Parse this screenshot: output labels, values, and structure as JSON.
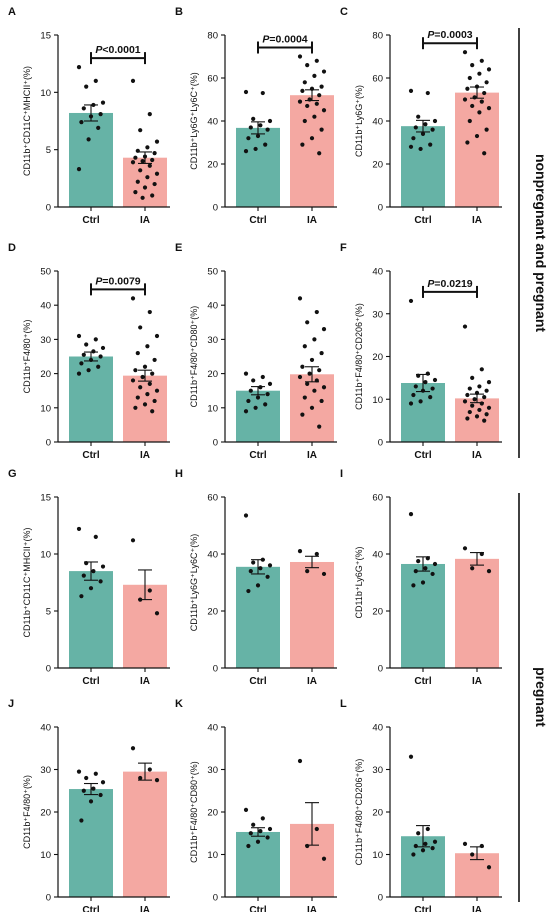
{
  "colors": {
    "ctrl": "#66b3a6",
    "ia": "#f4a8a2",
    "axis": "#111111",
    "dot": "#111111"
  },
  "groups": [
    {
      "label": "nonpregnant and pregnant"
    },
    {
      "label": "pregnant"
    }
  ],
  "chart_data": [
    {
      "panel": "A",
      "type": "bar",
      "ylabel": "CD11b⁺CD11C⁺MHCII⁺(%)",
      "categories": [
        "Ctrl",
        "IA"
      ],
      "ylim": [
        0,
        15
      ],
      "yticks": [
        0,
        5,
        10,
        15
      ],
      "means": [
        8.2,
        4.3
      ],
      "errors": [
        0.7,
        0.5
      ],
      "sig": "P<0.0001",
      "points": [
        [
          12.2,
          11.0,
          10.5,
          9.1,
          8.9,
          8.6,
          8.1,
          7.9,
          7.4,
          6.9,
          5.9,
          3.3
        ],
        [
          11.0,
          8.1,
          6.7,
          5.7,
          5.2,
          4.9,
          4.7,
          4.4,
          4.3,
          4.1,
          4.0,
          3.9,
          3.6,
          3.2,
          2.9,
          2.6,
          2.2,
          2.0,
          1.7,
          1.3,
          1.0,
          0.8
        ]
      ]
    },
    {
      "panel": "B",
      "type": "bar",
      "ylabel": "CD11b⁺Ly6G⁺Ly6C⁺(%)",
      "categories": [
        "Ctrl",
        "IA"
      ],
      "ylim": [
        0,
        80
      ],
      "yticks": [
        0,
        20,
        40,
        60,
        80
      ],
      "means": [
        36.8,
        52.0
      ],
      "errors": [
        2.8,
        2.5
      ],
      "sig": "P=0.0004",
      "points": [
        [
          53.5,
          53.0,
          41.0,
          40.0,
          38.0,
          37.0,
          36.0,
          33.0,
          32.0,
          29.0,
          27.0,
          26.0
        ],
        [
          70.0,
          68.0,
          66.0,
          63.0,
          61.0,
          58.0,
          56.0,
          55.0,
          54.0,
          52.0,
          50.0,
          49.0,
          48.0,
          47.0,
          45.0,
          42.0,
          40.0,
          36.0,
          32.0,
          29.0,
          25.0
        ]
      ]
    },
    {
      "panel": "C",
      "type": "bar",
      "ylabel": "CD11b⁺Ly6G⁺(%)",
      "categories": [
        "Ctrl",
        "IA"
      ],
      "ylim": [
        0,
        80
      ],
      "yticks": [
        0,
        20,
        40,
        60,
        80
      ],
      "means": [
        37.6,
        53.2
      ],
      "errors": [
        2.7,
        2.6
      ],
      "sig": "P=0.0003",
      "points": [
        [
          54.0,
          53.0,
          42.0,
          40.0,
          38.5,
          37.0,
          36.0,
          34.0,
          32.0,
          29.0,
          27.0,
          28.0
        ],
        [
          72.0,
          68.0,
          66.0,
          64.0,
          62.0,
          60.0,
          58.0,
          56.0,
          55.0,
          53.0,
          51.0,
          50.0,
          49.0,
          47.0,
          46.0,
          44.0,
          40.0,
          36.0,
          33.0,
          30.0,
          25.0
        ]
      ]
    },
    {
      "panel": "D",
      "type": "bar",
      "ylabel": "CD11b⁺F4/80⁺(%)",
      "categories": [
        "Ctrl",
        "IA"
      ],
      "ylim": [
        0,
        50
      ],
      "yticks": [
        0,
        10,
        20,
        30,
        40,
        50
      ],
      "means": [
        25.0,
        19.4
      ],
      "errors": [
        1.3,
        1.6
      ],
      "sig": "P=0.0079",
      "points": [
        [
          31.0,
          30.0,
          28.5,
          27.5,
          26.5,
          25.5,
          25.0,
          24.0,
          23.0,
          22.0,
          21.0,
          20.0
        ],
        [
          42.0,
          38.0,
          33.5,
          31.0,
          28.0,
          26.0,
          24.0,
          22.0,
          21.0,
          20.0,
          19.0,
          18.0,
          17.0,
          16.0,
          15.0,
          14.0,
          13.0,
          12.0,
          11.0,
          10.0,
          9.0
        ]
      ]
    },
    {
      "panel": "E",
      "type": "bar",
      "ylabel": "CD11b⁺F4/80⁺CD80⁺(%)",
      "categories": [
        "Ctrl",
        "IA"
      ],
      "ylim": [
        0,
        50
      ],
      "yticks": [
        0,
        10,
        20,
        30,
        40,
        50
      ],
      "means": [
        15.0,
        19.8
      ],
      "errors": [
        1.2,
        2.2
      ],
      "sig": "",
      "points": [
        [
          20.0,
          19.0,
          18.0,
          17.0,
          16.0,
          15.0,
          14.0,
          13.0,
          12.0,
          11.0,
          10.0,
          9.0
        ],
        [
          42.0,
          38.0,
          35.0,
          33.0,
          30.0,
          28.0,
          26.0,
          24.0,
          22.0,
          21.0,
          20.0,
          19.0,
          18.0,
          17.0,
          16.0,
          15.0,
          13.0,
          12.0,
          10.0,
          8.0,
          4.5
        ]
      ]
    },
    {
      "panel": "F",
      "type": "bar",
      "ylabel": "CD11b⁺F4/80⁺CD206⁺(%)",
      "categories": [
        "Ctrl",
        "IA"
      ],
      "ylim": [
        0,
        40
      ],
      "yticks": [
        0,
        10,
        20,
        30,
        40
      ],
      "means": [
        13.8,
        10.2
      ],
      "errors": [
        2.0,
        1.0
      ],
      "sig": "P=0.0219",
      "points": [
        [
          33.0,
          16.0,
          15.5,
          14.5,
          14.0,
          13.0,
          12.5,
          12.0,
          11.0,
          10.5,
          9.5,
          9.0
        ],
        [
          27.0,
          17.0,
          15.0,
          14.0,
          13.0,
          12.5,
          12.0,
          11.5,
          11.0,
          10.5,
          10.0,
          9.5,
          9.0,
          8.5,
          8.0,
          7.5,
          7.0,
          6.5,
          6.0,
          5.5,
          5.0
        ]
      ]
    },
    {
      "panel": "G",
      "type": "bar",
      "ylabel": "CD11b⁺CD11C⁺MHCII⁺(%)",
      "categories": [
        "Ctrl",
        "IA"
      ],
      "ylim": [
        0,
        15
      ],
      "yticks": [
        0,
        5,
        10,
        15
      ],
      "means": [
        8.5,
        7.3
      ],
      "errors": [
        0.8,
        1.3
      ],
      "sig": "",
      "points": [
        [
          12.2,
          11.5,
          9.2,
          8.9,
          8.5,
          8.1,
          7.6,
          7.0,
          6.3
        ],
        [
          11.2,
          6.8,
          6.0,
          4.8
        ]
      ]
    },
    {
      "panel": "H",
      "type": "bar",
      "ylabel": "CD11b⁺Ly6G⁺Ly6C⁺(%)",
      "categories": [
        "Ctrl",
        "IA"
      ],
      "ylim": [
        0,
        60
      ],
      "yticks": [
        0,
        20,
        40,
        60
      ],
      "means": [
        35.5,
        37.2
      ],
      "errors": [
        2.5,
        2.0
      ],
      "sig": "",
      "points": [
        [
          53.5,
          38.0,
          37.0,
          36.0,
          35.0,
          34.0,
          32.0,
          29.0,
          27.0
        ],
        [
          41.0,
          40.0,
          34.0,
          33.0
        ]
      ]
    },
    {
      "panel": "I",
      "type": "bar",
      "ylabel": "CD11b⁺Ly6G⁺(%)",
      "categories": [
        "Ctrl",
        "IA"
      ],
      "ylim": [
        0,
        60
      ],
      "yticks": [
        0,
        20,
        40,
        60
      ],
      "means": [
        36.5,
        38.3
      ],
      "errors": [
        2.5,
        2.2
      ],
      "sig": "",
      "points": [
        [
          54.0,
          38.5,
          37.5,
          36.5,
          35.0,
          34.0,
          33.0,
          30.0,
          29.0
        ],
        [
          42.0,
          40.0,
          35.0,
          34.0
        ]
      ]
    },
    {
      "panel": "J",
      "type": "bar",
      "ylabel": "CD11b⁺F4/80⁺(%)",
      "categories": [
        "Ctrl",
        "IA"
      ],
      "ylim": [
        0,
        40
      ],
      "yticks": [
        0,
        10,
        20,
        30,
        40
      ],
      "means": [
        25.4,
        29.5
      ],
      "errors": [
        1.3,
        2.0
      ],
      "sig": "",
      "points": [
        [
          29.5,
          29.0,
          28.0,
          27.0,
          25.5,
          25.0,
          24.0,
          22.5,
          18.0
        ],
        [
          35.0,
          30.0,
          28.0,
          27.5
        ]
      ]
    },
    {
      "panel": "K",
      "type": "bar",
      "ylabel": "CD11b⁺F4/80⁺CD80⁺(%)",
      "categories": [
        "Ctrl",
        "IA"
      ],
      "ylim": [
        0,
        40
      ],
      "yticks": [
        0,
        10,
        20,
        30,
        40
      ],
      "means": [
        15.3,
        17.2
      ],
      "errors": [
        1.0,
        5.0
      ],
      "sig": "",
      "points": [
        [
          20.5,
          18.5,
          17.0,
          16.0,
          15.5,
          15.0,
          14.0,
          13.0,
          12.0
        ],
        [
          32.0,
          16.0,
          12.0,
          9.0
        ]
      ]
    },
    {
      "panel": "L",
      "type": "bar",
      "ylabel": "CD11b⁺F4/80⁺CD206⁺(%)",
      "categories": [
        "Ctrl",
        "IA"
      ],
      "ylim": [
        0,
        40
      ],
      "yticks": [
        0,
        10,
        20,
        30,
        40
      ],
      "means": [
        14.3,
        10.3
      ],
      "errors": [
        2.5,
        1.5
      ],
      "sig": "",
      "points": [
        [
          33.0,
          16.0,
          15.0,
          13.0,
          12.5,
          12.0,
          11.5,
          11.0,
          10.0
        ],
        [
          12.5,
          12.0,
          10.0,
          7.0
        ]
      ]
    }
  ]
}
